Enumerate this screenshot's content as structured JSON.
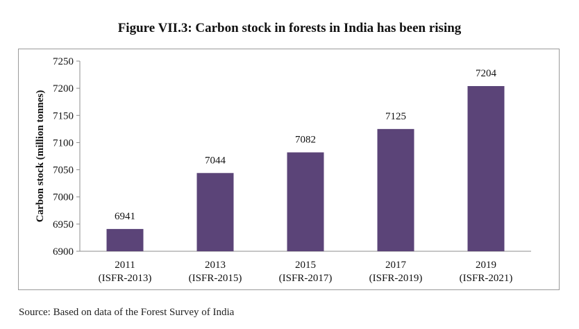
{
  "title": "Figure VII.3: Carbon stock in forests in India has been rising",
  "source": "Source: Based on data of the Forest Survey of India",
  "colors": {
    "bar": "#5b4478",
    "axis": "#8c8c8c",
    "text": "#111111"
  },
  "chart_data": {
    "type": "bar",
    "categories": [
      [
        "2011",
        "(ISFR-2013)"
      ],
      [
        "2013",
        "(ISFR-2015)"
      ],
      [
        "2015",
        "(ISFR-2017)"
      ],
      [
        "2017",
        "(ISFR-2019)"
      ],
      [
        "2019",
        "(ISFR-2021)"
      ]
    ],
    "values": [
      6941,
      7044,
      7082,
      7125,
      7204
    ],
    "data_labels": [
      "6941",
      "7044",
      "7082",
      "7125",
      "7204"
    ],
    "ylabel": "Carbon stock (million tonnes)",
    "ylim": [
      6900,
      7250
    ],
    "yticks": [
      6900,
      6950,
      7000,
      7050,
      7100,
      7150,
      7200,
      7250
    ],
    "grid": false,
    "legend": "none"
  }
}
